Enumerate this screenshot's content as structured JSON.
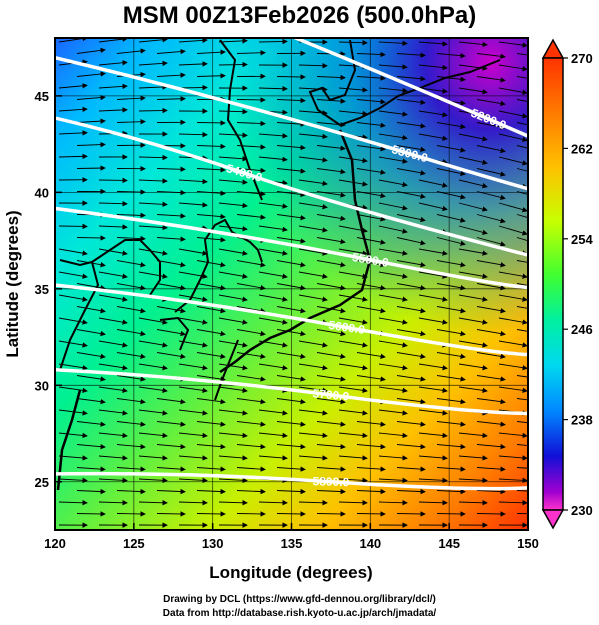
{
  "title": "MSM 00Z13Feb2026 (500.0hPa)",
  "xlabel": "Longitude (degrees)",
  "ylabel": "Latitude  (degrees)",
  "x_ticks": [
    "120",
    "125",
    "130",
    "135",
    "140",
    "145",
    "150"
  ],
  "y_ticks": [
    "25",
    "30",
    "35",
    "40",
    "45"
  ],
  "colorbar": {
    "min": 230,
    "max": 270,
    "labels": [
      "270",
      "262",
      "254",
      "246",
      "238",
      "230"
    ],
    "colors": [
      "#ff3300",
      "#ff7a00",
      "#ffc000",
      "#c8ff00",
      "#40ff30",
      "#00f0a0",
      "#00d8f0",
      "#0088ff",
      "#1010d8",
      "#a000d0",
      "#ff33cc"
    ]
  },
  "map_data": {
    "lon_range": [
      120,
      150
    ],
    "lat_range": [
      22.5,
      48
    ],
    "temperature_field": "shaded (K)",
    "height_contours": [
      {
        "label": "5200.0",
        "lon": 147.5,
        "lat": 43.8
      },
      {
        "label": "5300.0",
        "lon": 142.5,
        "lat": 42.0
      },
      {
        "label": "5400.0",
        "lon": 132.0,
        "lat": 41.0
      },
      {
        "label": "5500.0",
        "lon": 140.0,
        "lat": 36.5
      },
      {
        "label": "5600.0",
        "lon": 138.5,
        "lat": 33.0
      },
      {
        "label": "5700.0",
        "lon": 137.5,
        "lat": 29.5
      },
      {
        "label": "5800.0",
        "lon": 137.5,
        "lat": 25.0
      }
    ],
    "wind": "streamlines westerly"
  },
  "credits": {
    "line1": "Drawing by DCL (https://www.gfd-dennou.org/library/dcl/)",
    "line2": "Data from http://database.rish.kyoto-u.ac.jp/arch/jmadata/"
  }
}
